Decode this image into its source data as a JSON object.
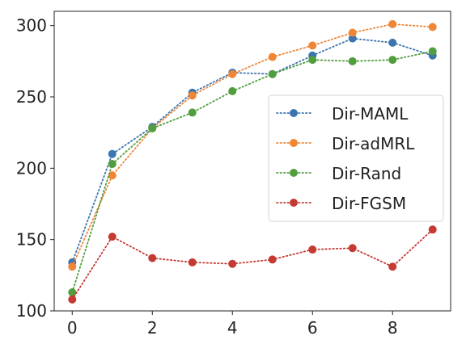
{
  "chart_data": {
    "type": "line",
    "title": "",
    "xlabel": "",
    "ylabel": "",
    "xlim": [
      -0.45,
      9.45
    ],
    "ylim": [
      100,
      310
    ],
    "xticks": [
      0,
      2,
      4,
      6,
      8
    ],
    "yticks": [
      100,
      150,
      200,
      250,
      300
    ],
    "grid": false,
    "legend_placement": "center-right",
    "line_style": "dotted",
    "x": [
      0,
      1,
      2,
      3,
      4,
      5,
      6,
      7,
      8,
      9
    ],
    "series": [
      {
        "name": "Dir-MAML",
        "color": "#3b75af",
        "values": [
          134,
          210,
          229,
          253,
          267,
          266,
          279,
          291,
          288,
          279
        ]
      },
      {
        "name": "Dir-adMRL",
        "color": "#ef8636",
        "values": [
          131,
          195,
          228,
          251,
          266,
          278,
          286,
          295,
          301,
          299
        ]
      },
      {
        "name": "Dir-Rand",
        "color": "#519e3e",
        "values": [
          113,
          203,
          228,
          239,
          254,
          266,
          276,
          275,
          276,
          282
        ]
      },
      {
        "name": "Dir-FGSM",
        "color": "#c53a32",
        "values": [
          108,
          152,
          137,
          134,
          133,
          136,
          143,
          144,
          131,
          157
        ]
      }
    ]
  }
}
